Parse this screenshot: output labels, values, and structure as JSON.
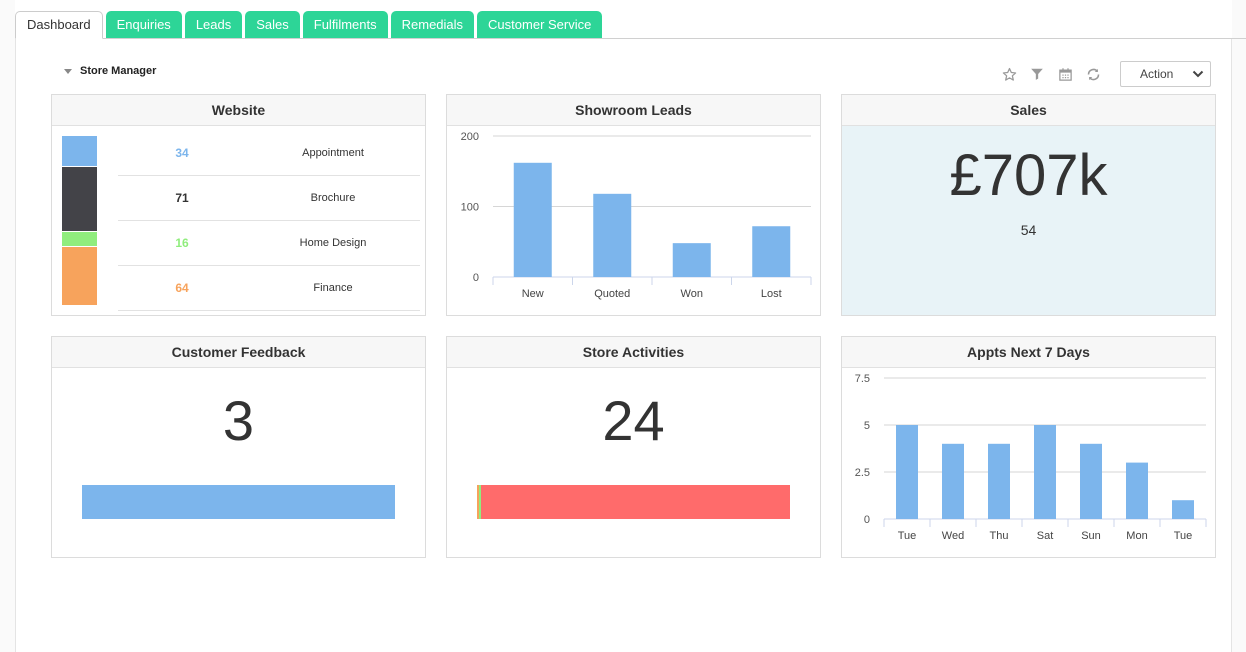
{
  "tabs": [
    {
      "label": "Dashboard",
      "active": true
    },
    {
      "label": "Enquiries"
    },
    {
      "label": "Leads"
    },
    {
      "label": "Sales"
    },
    {
      "label": "Fulfilments"
    },
    {
      "label": "Remedials"
    },
    {
      "label": "Customer Service"
    }
  ],
  "section": {
    "title": "Store Manager"
  },
  "toolbar": {
    "icons": [
      "star-icon",
      "filter-icon",
      "calendar-icon",
      "refresh-icon"
    ],
    "action_label": "Action"
  },
  "colors": {
    "accent": "#2dd597",
    "blue": "#7cb5ec",
    "dark": "#434348",
    "green": "#90ed7d",
    "orange": "#f7a35c",
    "red": "#ff6b6b"
  },
  "website": {
    "title": "Website",
    "rows": [
      {
        "value": "34",
        "label": "Appointment",
        "color": "#7cb5ec"
      },
      {
        "value": "71",
        "label": "Brochure",
        "color": "#434348"
      },
      {
        "value": "16",
        "label": "Home Design",
        "color": "#90ed7d"
      },
      {
        "value": "64",
        "label": "Finance",
        "color": "#f7a35c"
      }
    ]
  },
  "showroom": {
    "title": "Showroom Leads",
    "chart_data": {
      "type": "bar",
      "categories": [
        "New",
        "Quoted",
        "Won",
        "Lost"
      ],
      "values": [
        162,
        118,
        48,
        72
      ],
      "ylim": [
        0,
        200
      ],
      "yticks": [
        "0",
        "100",
        "200"
      ],
      "grid": true
    }
  },
  "sales": {
    "title": "Sales",
    "amount": "£707k",
    "count": "54"
  },
  "feedback": {
    "title": "Customer Feedback",
    "value": "3",
    "bar": [
      {
        "fraction": 1.0,
        "color": "#7cb5ec"
      }
    ]
  },
  "activities": {
    "title": "Store Activities",
    "value": "24",
    "bar": [
      {
        "fraction": 0.006,
        "color": "#f7a35c"
      },
      {
        "fraction": 0.006,
        "color": "#90ed7d"
      },
      {
        "fraction": 0.988,
        "color": "#ff6b6b"
      }
    ]
  },
  "appts": {
    "title": "Appts Next 7 Days",
    "chart_data": {
      "type": "bar",
      "categories": [
        "Tue",
        "Wed",
        "Thu",
        "Sat",
        "Sun",
        "Mon",
        "Tue"
      ],
      "values": [
        5,
        4,
        4,
        5,
        4,
        3,
        1
      ],
      "ylim": [
        0,
        7.5
      ],
      "yticks": [
        "0",
        "2.5",
        "5",
        "7.5"
      ],
      "grid": true
    }
  }
}
